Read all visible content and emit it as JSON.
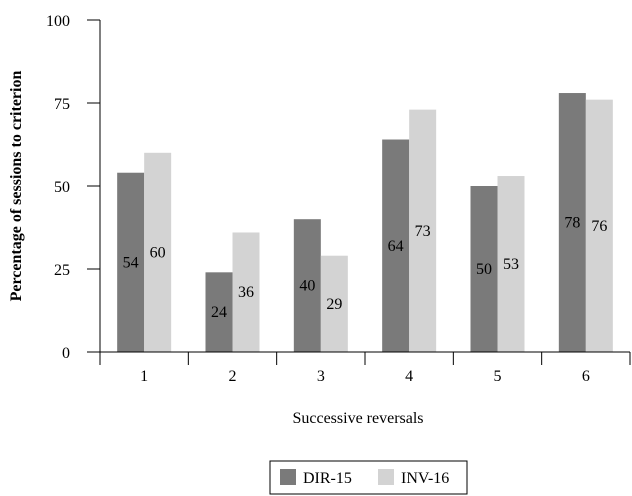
{
  "chart_data": {
    "type": "bar",
    "categories": [
      "1",
      "2",
      "3",
      "4",
      "5",
      "6"
    ],
    "series": [
      {
        "name": "DIR-15",
        "values": [
          54,
          24,
          40,
          64,
          50,
          78
        ],
        "color": "#7a7a7a"
      },
      {
        "name": "INV-16",
        "values": [
          60,
          36,
          29,
          73,
          53,
          76
        ],
        "color": "#d3d3d3"
      }
    ],
    "xlabel": "Successive reversals",
    "ylabel": "Percentage of sessions to criterion",
    "ylim": [
      0,
      100
    ],
    "yticks": [
      0,
      25,
      50,
      75,
      100
    ],
    "grid": false,
    "legend_position": "bottom-center"
  }
}
